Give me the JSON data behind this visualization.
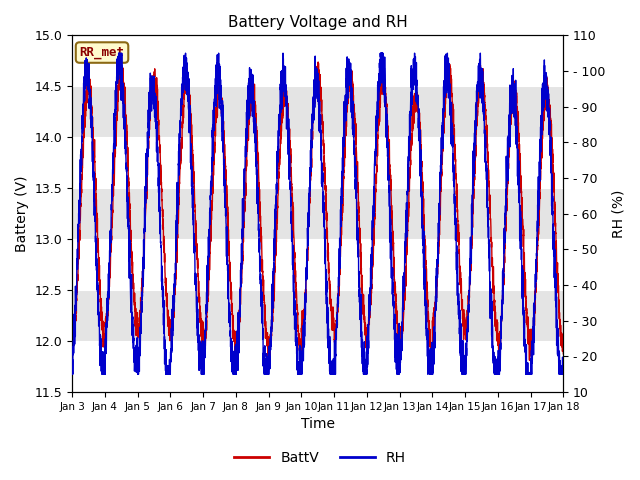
{
  "title": "Battery Voltage and RH",
  "xlabel": "Time",
  "ylabel_left": "Battery (V)",
  "ylabel_right": "RH (%)",
  "ylim_left": [
    11.5,
    15.0
  ],
  "ylim_right": [
    10,
    110
  ],
  "yticks_left": [
    11.5,
    12.0,
    12.5,
    13.0,
    13.5,
    14.0,
    14.5,
    15.0
  ],
  "yticks_right": [
    10,
    20,
    30,
    40,
    50,
    60,
    70,
    80,
    90,
    100,
    110
  ],
  "xtick_labels": [
    "Jan 3",
    "Jan 4",
    "Jan 5",
    "Jan 6",
    "Jan 7",
    "Jan 8",
    "Jan 9",
    "Jan 10",
    "Jan 11",
    "Jan 12",
    "Jan 13",
    "Jan 14",
    "Jan 15",
    "Jan 16",
    "Jan 17",
    "Jan 18"
  ],
  "annotation_text": "RR_met",
  "annotation_color": "#8B0000",
  "annotation_bg": "#FFFACD",
  "annotation_border": "#8B6914",
  "line_battv_color": "#CC0000",
  "line_rh_color": "#0000CC",
  "legend_battv": "BattV",
  "legend_rh": "RH",
  "bg_band_color": "#D3D3D3",
  "n_days": 15,
  "seed": 42,
  "points_per_day": 288
}
